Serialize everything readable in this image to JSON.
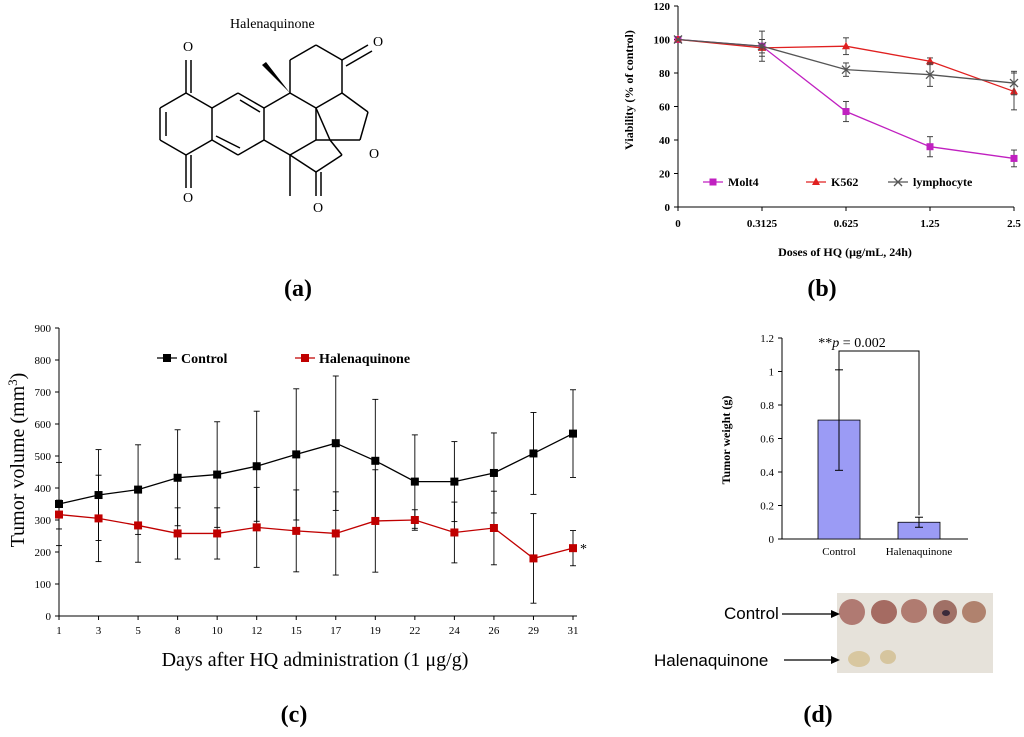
{
  "panels": {
    "a": {
      "label": "(a)",
      "compound_name": "Halenaquinone",
      "atom_label": "O"
    },
    "b": {
      "label": "(b)",
      "chart_data": {
        "type": "line",
        "x": [
          "0",
          "0.3125",
          "0.625",
          "1.25",
          "2.5"
        ],
        "ylabel": "Viability (% of control)",
        "xlabel": "Doses of HQ (μg/mL, 24h)",
        "ylim": [
          0,
          120
        ],
        "yticks": [
          "0",
          "20",
          "40",
          "60",
          "80",
          "100",
          "120"
        ],
        "legend_position": "bottom-left",
        "grid": false,
        "series": [
          {
            "name": "Molt4",
            "color": "#c020c0",
            "marker": "square",
            "values": [
              100,
              96,
              57,
              36,
              29
            ],
            "errors": [
              0,
              4,
              6,
              6,
              5
            ]
          },
          {
            "name": "K562",
            "color": "#e02020",
            "marker": "triangle",
            "values": [
              100,
              95,
              96,
              87,
              69
            ],
            "errors": [
              0,
              5,
              5,
              2,
              11
            ]
          },
          {
            "name": "lymphocyte",
            "color": "#555555",
            "marker": "x",
            "values": [
              100,
              96,
              82,
              79,
              74
            ],
            "errors": [
              0,
              9,
              4,
              7,
              7
            ]
          }
        ]
      }
    },
    "c": {
      "label": "(c)",
      "chart_data": {
        "type": "line",
        "x": [
          "1",
          "3",
          "5",
          "8",
          "10",
          "12",
          "15",
          "17",
          "19",
          "22",
          "24",
          "26",
          "29",
          "31"
        ],
        "ylabel": "Tumor volume (mm",
        "ylabel_sup": "3",
        "ylabel_end": ")",
        "xlabel": "Days after HQ administration (1 μg/g)",
        "ylim": [
          0,
          900
        ],
        "yticks": [
          "0",
          "100",
          "200",
          "300",
          "400",
          "500",
          "600",
          "700",
          "800",
          "900"
        ],
        "legend_position": "top-left",
        "grid": false,
        "significance_marker": "*",
        "series": [
          {
            "name": "Control",
            "color": "#000000",
            "values": [
              350,
              378,
              395,
              432,
              442,
              468,
              505,
              540,
              485,
              420,
              420,
              447,
              508,
              570
            ],
            "errors": [
              130,
              142,
              140,
              150,
              165,
              172,
              205,
              210,
              192,
              146,
              125,
              125,
              128,
              137
            ]
          },
          {
            "name": "Halenaquinone",
            "color": "#c00000",
            "values": [
              317,
              305,
              283,
              258,
              258,
              277,
              266,
              258,
              297,
              300,
              261,
              275,
              180,
              212
            ],
            "errors": [
              45,
              135,
              115,
              80,
              80,
              125,
              128,
              130,
              160,
              32,
              95,
              115,
              140,
              55
            ]
          }
        ]
      }
    },
    "d": {
      "label": "(d)",
      "chart_data": {
        "type": "bar",
        "categories": [
          "Control",
          "Halenaquinone"
        ],
        "values": [
          0.71,
          0.1
        ],
        "errors": [
          0.3,
          0.03
        ],
        "ylabel": "Tumor weight (g)",
        "ylim": [
          0,
          1.2
        ],
        "yticks": [
          "0",
          "0.2",
          "0.4",
          "0.6",
          "0.8",
          "1",
          "1.2"
        ],
        "bar_color": "#9b9bf5",
        "significance": {
          "stars": "**",
          "p_symbol": "p",
          "p_text": " = 0.002"
        }
      },
      "photo": {
        "label_control": "Control",
        "label_treated": "Halenaquinone"
      }
    }
  }
}
